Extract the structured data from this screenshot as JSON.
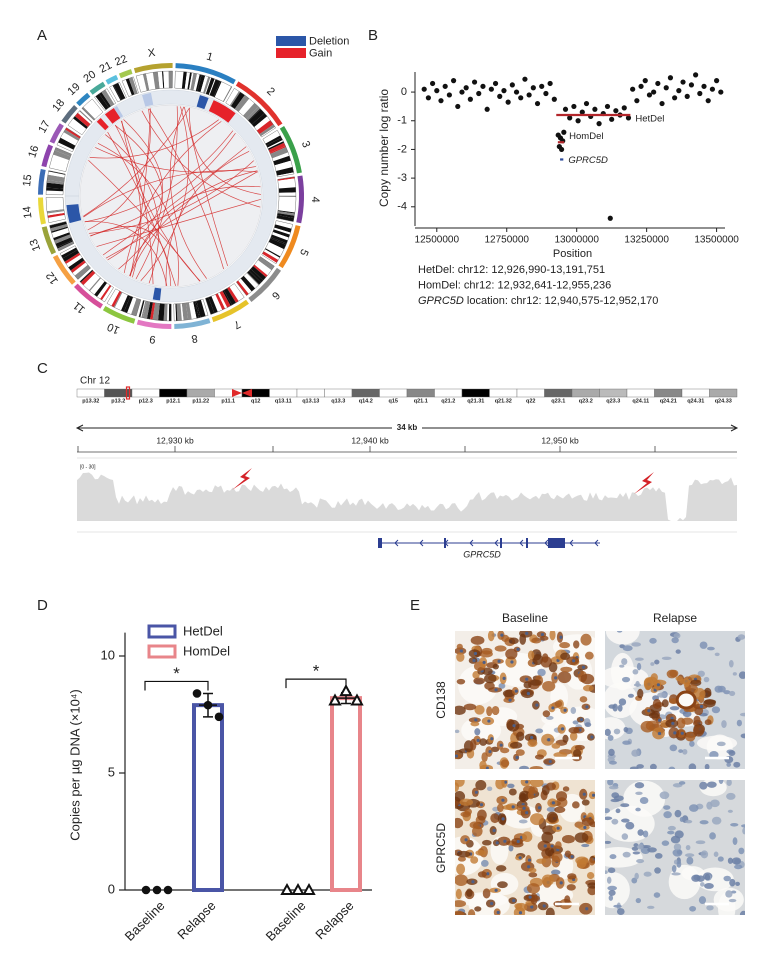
{
  "panels": [
    "A",
    "B",
    "C",
    "D",
    "E"
  ],
  "circos": {
    "chromosomes": [
      "1",
      "2",
      "3",
      "4",
      "5",
      "6",
      "7",
      "8",
      "9",
      "10",
      "11",
      "12",
      "13",
      "14",
      "15",
      "16",
      "17",
      "18",
      "19",
      "20",
      "21",
      "22",
      "X"
    ],
    "legend": [
      {
        "name": "Deletion",
        "color": "#2b56a8"
      },
      {
        "name": "Gain",
        "color": "#e6222a"
      }
    ]
  },
  "chart_data": [
    {
      "type": "scatter",
      "xlabel": "Position",
      "ylabel": "Copy number log ratio",
      "color": "#111111",
      "x": [
        12455000,
        12470000,
        12485000,
        12500000,
        12515000,
        12530000,
        12545000,
        12560000,
        12575000,
        12590000,
        12605000,
        12620000,
        12635000,
        12650000,
        12665000,
        12680000,
        12695000,
        12710000,
        12725000,
        12740000,
        12755000,
        12770000,
        12785000,
        12800000,
        12815000,
        12830000,
        12845000,
        12860000,
        12875000,
        12890000,
        12905000,
        12920000,
        12934000,
        12938000,
        12942000,
        12946000,
        12950000,
        12954000,
        12960000,
        12975000,
        12990000,
        13005000,
        13020000,
        13035000,
        13050000,
        13065000,
        13080000,
        13095000,
        13110000,
        13125000,
        13140000,
        13155000,
        13170000,
        13185000,
        13120000,
        13200000,
        13215000,
        13230000,
        13245000,
        13260000,
        13275000,
        13290000,
        13305000,
        13320000,
        13335000,
        13350000,
        13365000,
        13380000,
        13395000,
        13410000,
        13425000,
        13440000,
        13455000,
        13470000,
        13485000,
        13500000,
        13515000
      ],
      "values": [
        0.1,
        -0.2,
        0.3,
        0.05,
        -0.3,
        0.2,
        -0.1,
        0.4,
        -0.5,
        0.0,
        0.15,
        -0.25,
        0.35,
        -0.05,
        0.2,
        -0.6,
        0.1,
        0.3,
        -0.15,
        0.05,
        -0.35,
        0.25,
        0.0,
        -0.2,
        0.45,
        -0.1,
        0.15,
        -0.4,
        0.2,
        -0.05,
        0.3,
        -0.25,
        -1.5,
        -1.9,
        -1.6,
        -2.0,
        -1.7,
        -1.4,
        -0.6,
        -0.9,
        -0.5,
        -1.0,
        -0.7,
        -0.4,
        -0.85,
        -0.6,
        -1.1,
        -0.75,
        -0.5,
        -0.95,
        -0.65,
        -0.8,
        -0.55,
        -0.9,
        -4.4,
        0.1,
        -0.3,
        0.2,
        0.4,
        -0.1,
        0.0,
        0.3,
        -0.4,
        0.15,
        0.5,
        -0.2,
        0.05,
        0.35,
        -0.15,
        0.25,
        0.6,
        -0.05,
        0.2,
        -0.3,
        0.1,
        0.4,
        0.0
      ],
      "xlim": [
        12440000,
        13530000
      ],
      "ylim": [
        -4.6,
        0.7
      ],
      "xticks": [
        12500000,
        12750000,
        13000000,
        13250000,
        13500000
      ],
      "yticks": [
        -4,
        -3,
        -2,
        -1,
        0
      ],
      "segments": [
        {
          "name": "HetDel",
          "start": 12926990,
          "end": 13191751,
          "value": -0.8,
          "color": "#b3262b"
        },
        {
          "name": "HomDel",
          "start": 12932641,
          "end": 12955236,
          "value": -1.75,
          "color": "#b3262b"
        },
        {
          "name": "GPRC5D",
          "start": 12940575,
          "end": 12952170,
          "value": -2.35,
          "color": "#2c4a9a"
        }
      ]
    },
    {
      "type": "bar",
      "ylabel": "Copies per µg DNA (×10⁴)",
      "categories": [
        "Baseline",
        "Relapse",
        "Baseline",
        "Relapse"
      ],
      "series": [
        {
          "name": "HetDel",
          "color": "#4a55a6",
          "marker": "circle",
          "values": [
            0,
            7.9,
            null,
            null
          ],
          "errors": [
            0,
            0.5,
            null,
            null
          ],
          "points": [
            [
              0,
              0,
              0
            ],
            [
              8.4,
              7.9,
              7.4
            ],
            null,
            null
          ]
        },
        {
          "name": "HomDel",
          "color": "#e8858a",
          "marker": "triangle",
          "values": [
            null,
            null,
            0,
            8.2
          ],
          "errors": [
            null,
            null,
            0,
            0.23
          ],
          "points": [
            null,
            null,
            [
              0,
              0,
              0
            ],
            [
              8.1,
              8.5,
              8.1
            ]
          ]
        }
      ],
      "ylim": [
        0,
        11
      ],
      "yticks": [
        0,
        5,
        10
      ],
      "significance": [
        {
          "label": "*",
          "from": 0,
          "to": 1
        },
        {
          "label": "*",
          "from": 2,
          "to": 3
        }
      ]
    }
  ],
  "notes": [
    "HetDel: chr12: 12,926,990-13,191,751",
    "HomDel: chr12: 12,932,641-12,955,236",
    {
      "gene": "GPRC5D",
      "text": " location: chr12: 12,940,575-12,952,170"
    }
  ],
  "genome": {
    "chromosome": "Chr 12",
    "bands": [
      "p13.32",
      "p13.2",
      "p12.3",
      "p12.1",
      "p11.22",
      "p11.1",
      "q12",
      "q13.11",
      "q13.13",
      "q13.3",
      "q14.2",
      "q15",
      "q21.1",
      "q21.2",
      "q21.31",
      "q21.32",
      "q22",
      "q23.1",
      "q23.2",
      "q23.3",
      "q24.11",
      "q24.21",
      "q24.31",
      "q24.33"
    ],
    "span": "34 kb",
    "coordinates": [
      "12,930 kb",
      "12,940 kb",
      "12,950 kb"
    ],
    "range": "[0 - 30]",
    "gene": "GPRC5D"
  },
  "ihc": {
    "columns": [
      "Baseline",
      "Relapse"
    ],
    "rows": [
      "CD138",
      "GPRC5D"
    ]
  }
}
